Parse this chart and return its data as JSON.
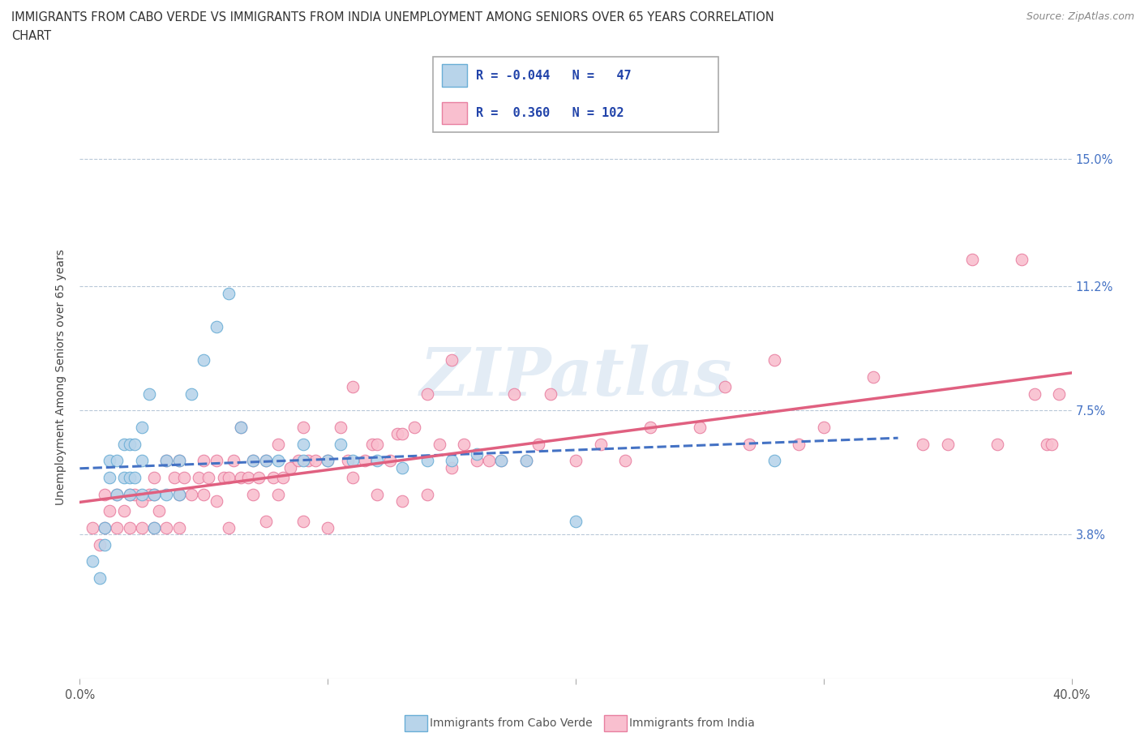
{
  "title_line1": "IMMIGRANTS FROM CABO VERDE VS IMMIGRANTS FROM INDIA UNEMPLOYMENT AMONG SENIORS OVER 65 YEARS CORRELATION",
  "title_line2": "CHART",
  "source": "Source: ZipAtlas.com",
  "ylabel": "Unemployment Among Seniors over 65 years",
  "xlim": [
    0.0,
    0.4
  ],
  "ylim": [
    -0.005,
    0.175
  ],
  "yticks": [
    0.0,
    0.038,
    0.075,
    0.112,
    0.15
  ],
  "ytick_labels": [
    "",
    "3.8%",
    "7.5%",
    "11.2%",
    "15.0%"
  ],
  "xticks": [
    0.0,
    0.1,
    0.2,
    0.3,
    0.4
  ],
  "xtick_labels": [
    "0.0%",
    "",
    "",
    "",
    "40.0%"
  ],
  "gridline_y": [
    0.038,
    0.075,
    0.112,
    0.15
  ],
  "cabo_verde_fill": "#b8d4ea",
  "cabo_verde_edge": "#6aaed6",
  "india_fill": "#f9bfcf",
  "india_edge": "#e87fa0",
  "cabo_verde_line_color": "#4472c4",
  "india_line_color": "#e06080",
  "R_cabo": -0.044,
  "N_cabo": 47,
  "R_india": 0.36,
  "N_india": 102,
  "watermark": "ZIPatlas",
  "cabo_verde_x": [
    0.005,
    0.008,
    0.01,
    0.01,
    0.012,
    0.012,
    0.015,
    0.015,
    0.018,
    0.018,
    0.02,
    0.02,
    0.02,
    0.022,
    0.022,
    0.025,
    0.025,
    0.025,
    0.028,
    0.03,
    0.03,
    0.035,
    0.035,
    0.04,
    0.04,
    0.045,
    0.05,
    0.055,
    0.06,
    0.065,
    0.07,
    0.075,
    0.08,
    0.09,
    0.09,
    0.1,
    0.105,
    0.11,
    0.12,
    0.13,
    0.14,
    0.15,
    0.16,
    0.17,
    0.18,
    0.2,
    0.28
  ],
  "cabo_verde_y": [
    0.03,
    0.025,
    0.035,
    0.04,
    0.055,
    0.06,
    0.05,
    0.06,
    0.055,
    0.065,
    0.05,
    0.055,
    0.065,
    0.055,
    0.065,
    0.05,
    0.06,
    0.07,
    0.08,
    0.04,
    0.05,
    0.05,
    0.06,
    0.05,
    0.06,
    0.08,
    0.09,
    0.1,
    0.11,
    0.07,
    0.06,
    0.06,
    0.06,
    0.06,
    0.065,
    0.06,
    0.065,
    0.06,
    0.06,
    0.058,
    0.06,
    0.06,
    0.062,
    0.06,
    0.06,
    0.042,
    0.06
  ],
  "india_x": [
    0.005,
    0.008,
    0.01,
    0.01,
    0.012,
    0.015,
    0.015,
    0.018,
    0.02,
    0.02,
    0.022,
    0.025,
    0.025,
    0.028,
    0.03,
    0.03,
    0.03,
    0.032,
    0.035,
    0.035,
    0.038,
    0.04,
    0.04,
    0.04,
    0.042,
    0.045,
    0.048,
    0.05,
    0.05,
    0.052,
    0.055,
    0.055,
    0.058,
    0.06,
    0.06,
    0.062,
    0.065,
    0.065,
    0.068,
    0.07,
    0.07,
    0.072,
    0.075,
    0.075,
    0.078,
    0.08,
    0.08,
    0.082,
    0.085,
    0.088,
    0.09,
    0.09,
    0.092,
    0.095,
    0.1,
    0.1,
    0.105,
    0.108,
    0.11,
    0.11,
    0.115,
    0.118,
    0.12,
    0.12,
    0.125,
    0.128,
    0.13,
    0.13,
    0.135,
    0.14,
    0.14,
    0.145,
    0.15,
    0.15,
    0.155,
    0.16,
    0.165,
    0.17,
    0.175,
    0.18,
    0.185,
    0.19,
    0.2,
    0.21,
    0.22,
    0.23,
    0.25,
    0.26,
    0.27,
    0.28,
    0.29,
    0.3,
    0.32,
    0.34,
    0.35,
    0.36,
    0.37,
    0.38,
    0.385,
    0.39,
    0.392,
    0.395
  ],
  "india_y": [
    0.04,
    0.035,
    0.04,
    0.05,
    0.045,
    0.04,
    0.05,
    0.045,
    0.04,
    0.05,
    0.05,
    0.04,
    0.048,
    0.05,
    0.04,
    0.05,
    0.055,
    0.045,
    0.04,
    0.06,
    0.055,
    0.04,
    0.05,
    0.06,
    0.055,
    0.05,
    0.055,
    0.05,
    0.06,
    0.055,
    0.048,
    0.06,
    0.055,
    0.04,
    0.055,
    0.06,
    0.055,
    0.07,
    0.055,
    0.05,
    0.06,
    0.055,
    0.042,
    0.06,
    0.055,
    0.05,
    0.065,
    0.055,
    0.058,
    0.06,
    0.042,
    0.07,
    0.06,
    0.06,
    0.04,
    0.06,
    0.07,
    0.06,
    0.055,
    0.082,
    0.06,
    0.065,
    0.05,
    0.065,
    0.06,
    0.068,
    0.048,
    0.068,
    0.07,
    0.05,
    0.08,
    0.065,
    0.058,
    0.09,
    0.065,
    0.06,
    0.06,
    0.06,
    0.08,
    0.06,
    0.065,
    0.08,
    0.06,
    0.065,
    0.06,
    0.07,
    0.07,
    0.082,
    0.065,
    0.09,
    0.065,
    0.07,
    0.085,
    0.065,
    0.065,
    0.12,
    0.065,
    0.12,
    0.08,
    0.065,
    0.065,
    0.08
  ]
}
